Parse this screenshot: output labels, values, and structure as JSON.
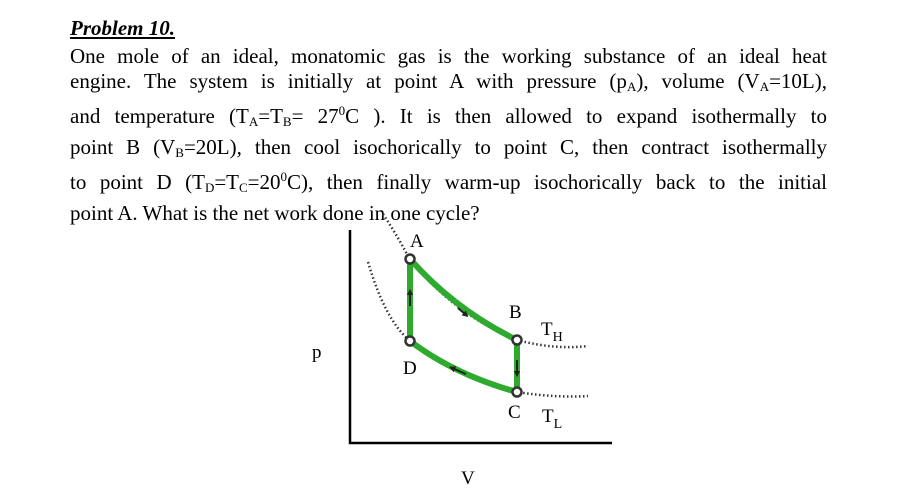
{
  "problem": {
    "title": "Problem 10.",
    "paragraph": [
      "One mole of an ideal, monatomic gas is the working substance of an ideal heat",
      "engine. The system is initially at point A with pressure (p",
      "A",
      "), volume (V",
      "A",
      "=10L),",
      "and temperature (T",
      "A",
      "=T",
      "B",
      "= 27",
      "0",
      "C ). It is then allowed to expand isothermally to",
      "point B (V",
      "B",
      "=20L), then cool isochorically to point C, then contract isothermally",
      "to point D (T",
      "D",
      "=T",
      "C",
      "=20",
      "0",
      "C), then finally warm-up isochorically back to the initial",
      "point A. What is the net work done in one cycle?"
    ]
  },
  "diagram": {
    "y_axis_label": "p",
    "x_axis_label": "V",
    "points": [
      "A",
      "B",
      "C",
      "D"
    ],
    "isotherms": [
      {
        "label": "T",
        "sub": "H"
      },
      {
        "label": "T",
        "sub": "L"
      }
    ]
  }
}
